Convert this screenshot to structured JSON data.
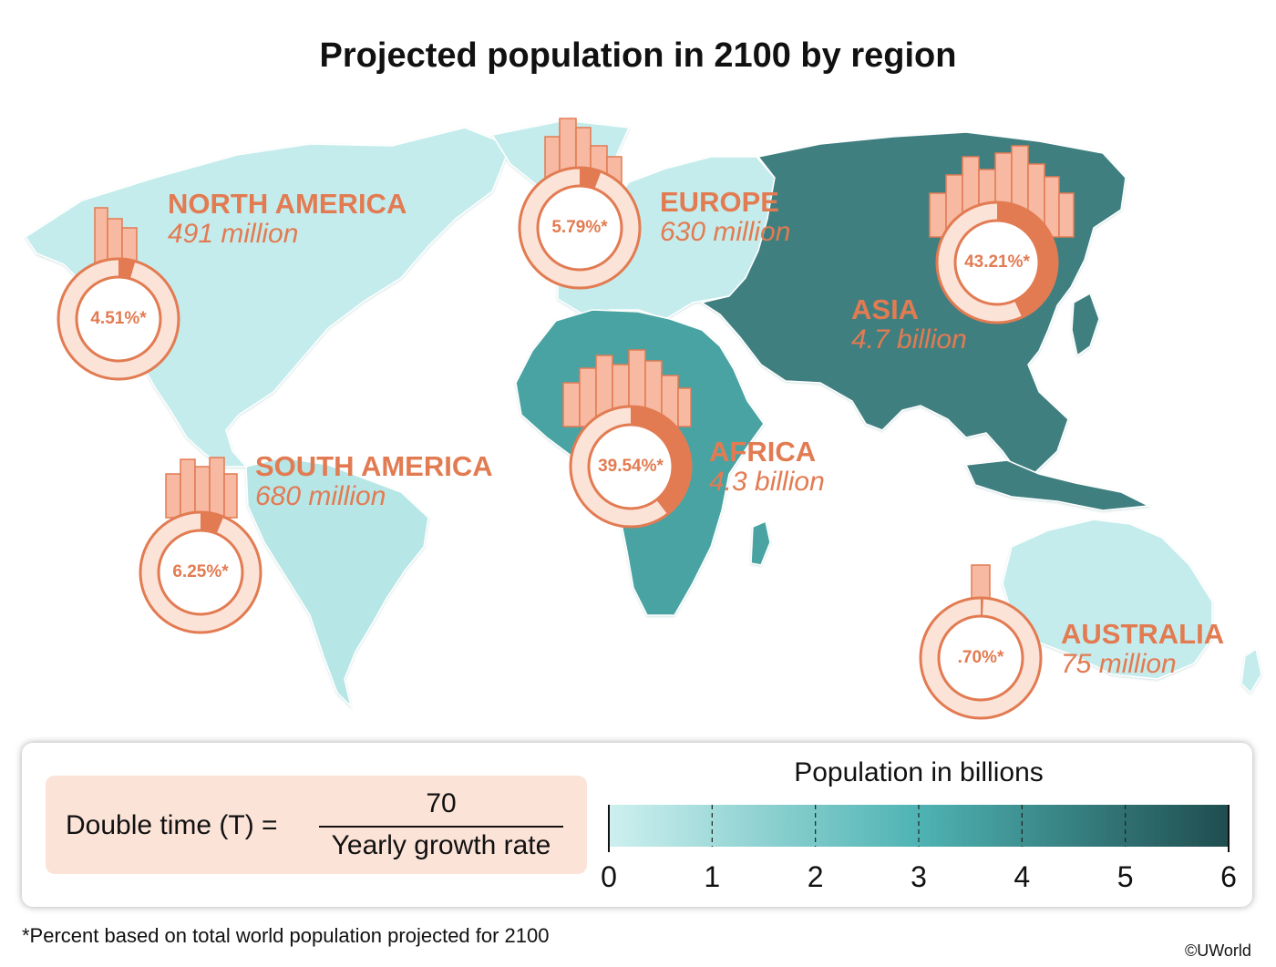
{
  "title": "Projected population in 2100 by region",
  "colors": {
    "scale_low": "#cdf0ef",
    "scale_high": "#1f4d4f",
    "accent": "#e27b52",
    "ring_fill": "#fbe3d8"
  },
  "regions": [
    {
      "name": "NORTH AMERICA",
      "population": "491 million",
      "percent_label": "4.51%*",
      "share": 4.51,
      "population_billions": 0.491
    },
    {
      "name": "EUROPE",
      "population": "630 million",
      "percent_label": "5.79%*",
      "share": 5.79,
      "population_billions": 0.63
    },
    {
      "name": "ASIA",
      "population": "4.7 billion",
      "percent_label": "43.21%*",
      "share": 43.21,
      "population_billions": 4.7
    },
    {
      "name": "AFRICA",
      "population": "4.3 billion",
      "percent_label": "39.54%*",
      "share": 39.54,
      "population_billions": 4.3
    },
    {
      "name": "SOUTH AMERICA",
      "population": "680 million",
      "percent_label": "6.25%*",
      "share": 6.25,
      "population_billions": 0.68
    },
    {
      "name": "AUSTRALIA",
      "population": "75 million",
      "percent_label": ".70%*",
      "share": 0.7,
      "population_billions": 0.075
    }
  ],
  "formula": {
    "lhs": "Double time (T) =",
    "numerator": "70",
    "denominator": "Yearly growth rate"
  },
  "scale": {
    "title": "Population in billions",
    "ticks": [
      "0",
      "1",
      "2",
      "3",
      "4",
      "5",
      "6"
    ]
  },
  "footnote": "*Percent based on total world population projected for 2100",
  "copyright": "©UWorld"
}
